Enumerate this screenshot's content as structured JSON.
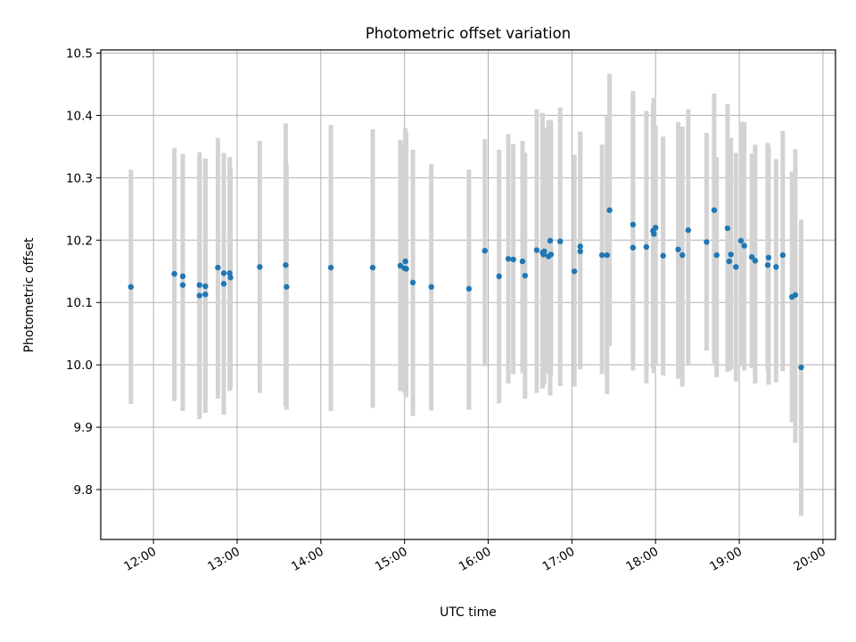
{
  "chart_data": {
    "type": "scatter",
    "title": "Photometric offset variation",
    "xlabel": "UTC time",
    "ylabel": "Photometric offset",
    "x_axis": "time (hours, UTC)",
    "xlim": [
      11.37,
      20.15
    ],
    "ylim": [
      9.72,
      10.505
    ],
    "x_ticks": [
      12,
      13,
      14,
      15,
      16,
      17,
      18,
      19,
      20
    ],
    "x_tick_labels": [
      "12:00",
      "13:00",
      "14:00",
      "15:00",
      "16:00",
      "17:00",
      "18:00",
      "19:00",
      "20:00"
    ],
    "y_ticks": [
      9.8,
      9.9,
      10.0,
      10.1,
      10.2,
      10.3,
      10.4,
      10.5
    ],
    "y_tick_labels": [
      "9.8",
      "9.9",
      "10.0",
      "10.1",
      "10.2",
      "10.3",
      "10.4",
      "10.5"
    ],
    "grid": true,
    "marker_color": "#1f77b4",
    "errorbar_color": "#d3d3d3",
    "series": [
      {
        "x": [
          11.73,
          12.25,
          12.35,
          12.35,
          12.55,
          12.55,
          12.62,
          12.62,
          12.77,
          12.84,
          12.84,
          12.91,
          12.92,
          13.27,
          13.58,
          13.59,
          14.12,
          14.62,
          14.95,
          15.0,
          15.01,
          15.02,
          15.1,
          15.32,
          15.77,
          15.96,
          16.13,
          16.24,
          16.3,
          16.41,
          16.44,
          16.58,
          16.65,
          16.66,
          16.67,
          16.72,
          16.74,
          16.75,
          16.86,
          17.03,
          17.1,
          17.1,
          17.36,
          17.42,
          17.45,
          17.73,
          17.73,
          17.89,
          17.97,
          17.98,
          18.0,
          18.09,
          18.27,
          18.32,
          18.39,
          18.61,
          18.7,
          18.73,
          18.86,
          18.88,
          18.9,
          18.96,
          19.02,
          19.06,
          19.15,
          19.19,
          19.34,
          19.35,
          19.44,
          19.52,
          19.63,
          19.67,
          19.74
        ],
        "y": [
          10.125,
          10.146,
          10.142,
          10.128,
          10.128,
          10.111,
          10.126,
          10.113,
          10.156,
          10.13,
          10.147,
          10.147,
          10.14,
          10.157,
          10.16,
          10.125,
          10.156,
          10.156,
          10.159,
          10.155,
          10.166,
          10.154,
          10.132,
          10.125,
          10.122,
          10.183,
          10.142,
          10.17,
          10.169,
          10.166,
          10.143,
          10.184,
          10.18,
          10.177,
          10.182,
          10.174,
          10.199,
          10.177,
          10.198,
          10.15,
          10.182,
          10.19,
          10.176,
          10.176,
          10.248,
          10.188,
          10.225,
          10.189,
          10.215,
          10.21,
          10.22,
          10.175,
          10.185,
          10.176,
          10.216,
          10.197,
          10.248,
          10.176,
          10.219,
          10.166,
          10.177,
          10.157,
          10.199,
          10.191,
          10.173,
          10.167,
          10.16,
          10.172,
          10.157,
          10.176,
          10.109,
          10.112,
          9.996
        ],
        "err_low": [
          9.937,
          9.942,
          9.926,
          9.947,
          9.913,
          9.918,
          9.923,
          9.942,
          9.946,
          9.92,
          9.935,
          9.958,
          9.962,
          9.955,
          9.934,
          9.928,
          9.926,
          9.931,
          9.958,
          9.955,
          9.952,
          9.948,
          9.918,
          9.927,
          9.928,
          9.998,
          9.938,
          9.97,
          9.985,
          9.987,
          9.946,
          9.955,
          9.962,
          9.967,
          9.97,
          9.986,
          9.951,
          9.983,
          9.966,
          9.965,
          9.993,
          10.0,
          9.985,
          9.953,
          10.03,
          9.991,
          10.012,
          9.97,
          9.995,
          9.987,
          10.0,
          9.983,
          9.978,
          9.965,
          10.0,
          10.023,
          10.002,
          9.98,
          9.989,
          9.99,
          9.993,
          9.973,
          9.998,
          9.991,
          9.995,
          9.97,
          9.992,
          9.968,
          9.972,
          9.99,
          9.908,
          9.875,
          9.758
        ],
        "err_high": [
          10.313,
          10.348,
          10.338,
          10.338,
          10.341,
          10.333,
          10.331,
          10.33,
          10.364,
          10.34,
          10.334,
          10.333,
          10.317,
          10.359,
          10.387,
          10.321,
          10.385,
          10.378,
          10.361,
          10.355,
          10.38,
          10.372,
          10.345,
          10.322,
          10.313,
          10.362,
          10.345,
          10.37,
          10.354,
          10.359,
          10.34,
          10.41,
          10.404,
          10.367,
          10.38,
          10.392,
          10.393,
          10.391,
          10.413,
          10.337,
          10.372,
          10.374,
          10.353,
          10.399,
          10.467,
          10.439,
          10.435,
          10.407,
          10.42,
          10.428,
          10.384,
          10.366,
          10.389,
          10.382,
          10.41,
          10.372,
          10.435,
          10.333,
          10.418,
          10.346,
          10.364,
          10.34,
          10.39,
          10.389,
          10.339,
          10.353,
          10.356,
          10.351,
          10.33,
          10.375,
          10.31,
          10.346,
          10.233
        ]
      }
    ]
  }
}
